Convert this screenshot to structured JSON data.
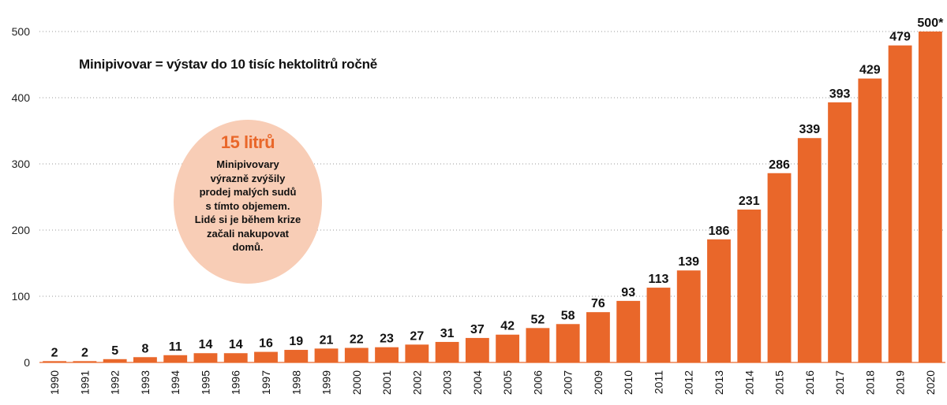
{
  "chart_data": {
    "type": "bar",
    "title": "Minipivovar = výstav do 10 tisíc hektolitrů ročně",
    "categories": [
      "1990",
      "1991",
      "1992",
      "1993",
      "1994",
      "1995",
      "1996",
      "1997",
      "1998",
      "1999",
      "2000",
      "2001",
      "2002",
      "2003",
      "2004",
      "2005",
      "2006",
      "2007",
      "2009",
      "2010",
      "2011",
      "2012",
      "2013",
      "2014",
      "2015",
      "2016",
      "2017",
      "2018",
      "2019",
      "2020"
    ],
    "values": [
      2,
      2,
      5,
      8,
      11,
      14,
      14,
      16,
      19,
      21,
      22,
      23,
      27,
      31,
      37,
      42,
      52,
      58,
      76,
      93,
      113,
      139,
      186,
      231,
      286,
      339,
      393,
      429,
      479,
      500
    ],
    "value_labels": [
      "2",
      "2",
      "5",
      "8",
      "11",
      "14",
      "14",
      "16",
      "19",
      "21",
      "22",
      "23",
      "27",
      "31",
      "37",
      "42",
      "52",
      "58",
      "76",
      "93",
      "113",
      "139",
      "186",
      "231",
      "286",
      "339",
      "393",
      "429",
      "479",
      "500*"
    ],
    "yticks": [
      0,
      100,
      200,
      300,
      400,
      500
    ],
    "ylim": [
      0,
      525
    ],
    "grid": true,
    "bar_color": "#e9672a",
    "xlabel": "",
    "ylabel": ""
  },
  "callout": {
    "title": "15 litrů",
    "lines": [
      "Minipivovary",
      "výrazně zvýšily",
      "prodej malých sudů",
      "s tímto objemem.",
      "Lidé si je během krize",
      "začali nakupovat",
      "domů."
    ],
    "background": "#f8cdb6",
    "title_color": "#e9672a"
  }
}
